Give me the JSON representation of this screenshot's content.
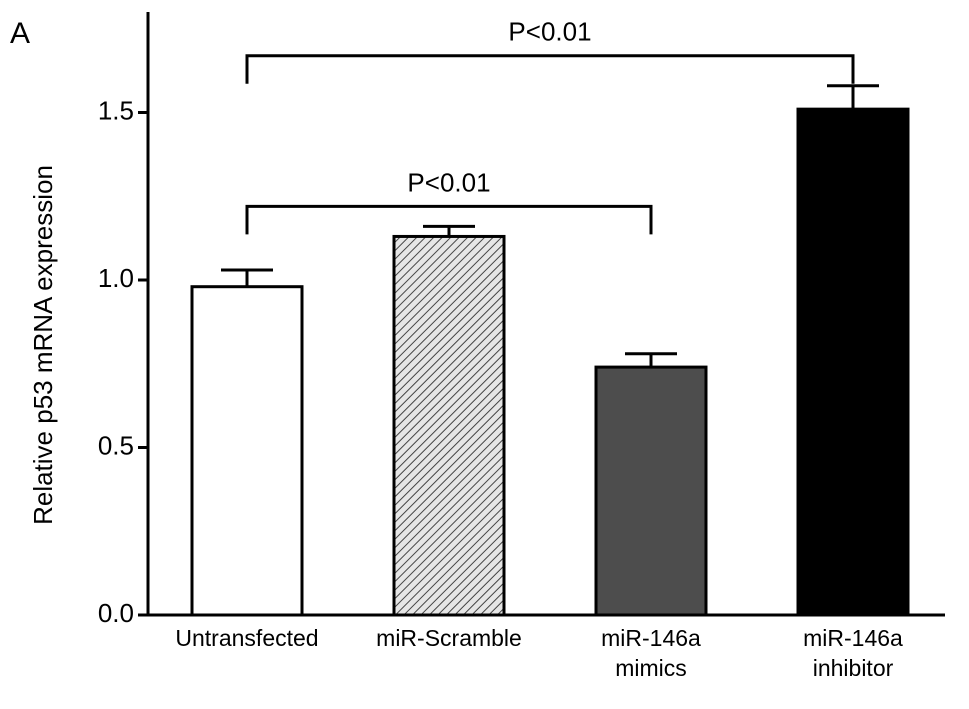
{
  "chart_data": {
    "type": "bar",
    "panel_label": "A",
    "y_label": "Relative p53 mRNA expression",
    "categories": [
      "Untransfected",
      "miR-Scramble",
      "miR-146a mimics",
      "miR-146a inhibitor"
    ],
    "values": [
      0.98,
      1.13,
      0.74,
      1.51
    ],
    "errors": [
      0.05,
      0.03,
      0.04,
      0.07
    ],
    "colors": [
      "#ffffff",
      "#d8d8d8",
      "#4d4d4d",
      "#000000"
    ],
    "hatch": [
      false,
      true,
      false,
      false
    ],
    "ylim": [
      0,
      1.8
    ],
    "yticks": [
      {
        "value": 0,
        "label": "0.0"
      },
      {
        "value": 0.5,
        "label": "0.5"
      },
      {
        "value": 1,
        "label": "1.0"
      },
      {
        "value": 1.5,
        "label": "1.5"
      }
    ],
    "annotations": [
      {
        "label": "P<0.01",
        "from": 0,
        "to": 2
      },
      {
        "label": "P<0.01",
        "from": 0,
        "to": 3
      }
    ]
  }
}
